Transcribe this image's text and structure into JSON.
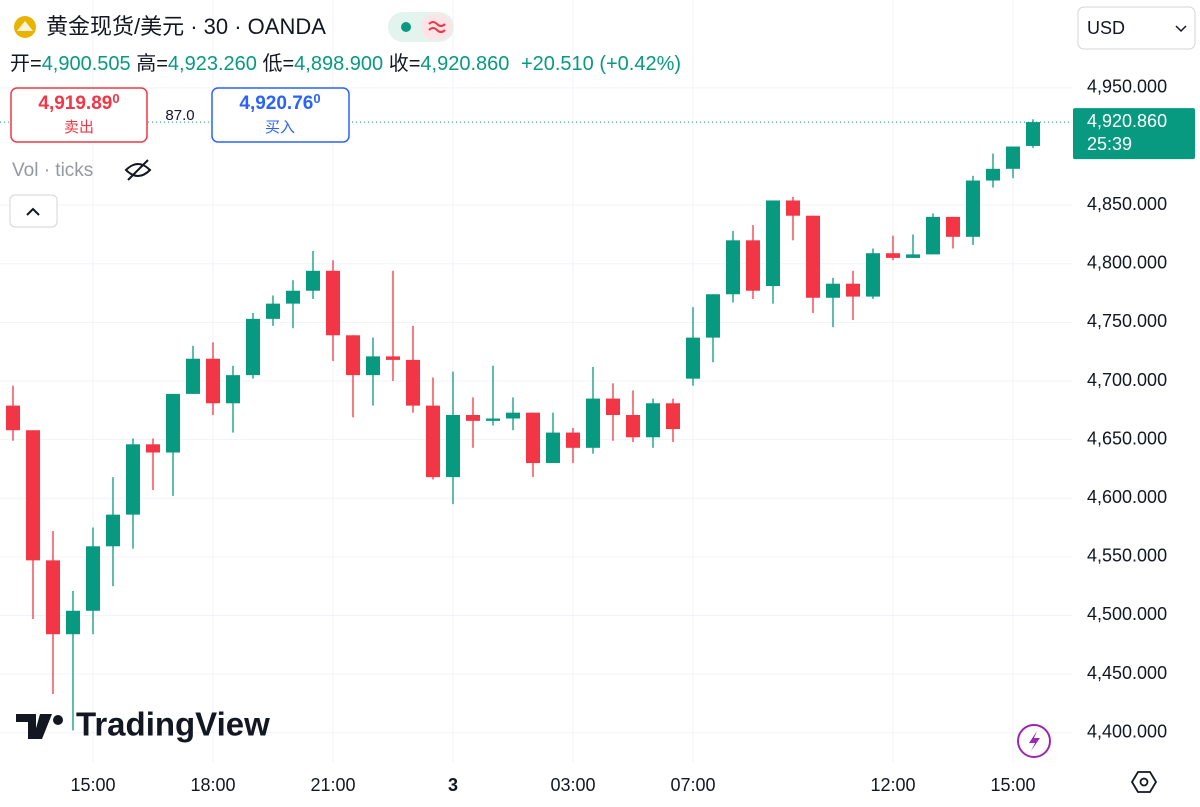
{
  "chart_data": {
    "type": "candlestick",
    "title": "黄金现货/美元 · 30 · OANDA",
    "currency": "USD",
    "legend": {
      "open_label": "开=",
      "open": "4,900.505",
      "high_label": "高=",
      "high": "4,923.260",
      "low_label": "低=",
      "low": "4,898.900",
      "close_label": "收=",
      "close": "4,920.860",
      "change": "+20.510 (+0.42%)"
    },
    "sell_price": "4,919.89",
    "sell_price_sup": "0",
    "sell_label": "卖出",
    "spread": "87.0",
    "buy_price": "4,920.76",
    "buy_price_sup": "0",
    "buy_label": "买入",
    "indicator": "Vol · ticks",
    "watermark": "TradingView",
    "last_price_label": "4,920.860",
    "countdown": "25:39",
    "up_color": "#089981",
    "down_color": "#f23645",
    "grid": true,
    "categories": [
      null,
      null,
      null,
      null,
      "15:00",
      null,
      null,
      null,
      null,
      null,
      "18:00",
      null,
      null,
      null,
      null,
      null,
      "21:00",
      null,
      null,
      null,
      null,
      null,
      "3",
      null,
      null,
      null,
      null,
      null,
      "03:00",
      null,
      null,
      null,
      null,
      null,
      "07:00",
      null,
      null,
      null,
      null,
      null,
      null,
      null,
      null,
      null,
      "12:00",
      null,
      null,
      null,
      null,
      null,
      "15:00",
      null
    ],
    "open": [
      4679,
      4658,
      4547,
      4484,
      4504,
      4559,
      4586,
      4646,
      4639,
      4689,
      4719,
      4681,
      4705,
      4753,
      4766,
      4777,
      4794,
      4739,
      4705,
      4721,
      4718,
      4679,
      4618,
      4671,
      4666,
      4668,
      4673,
      4630,
      4656,
      4643,
      4685,
      4671,
      4652,
      4681,
      4702,
      4737,
      4774,
      4820,
      4781,
      4854,
      4841,
      4771,
      4783,
      4772,
      4809,
      4805,
      4808,
      4840,
      4823,
      4871,
      4881,
      4900.505
    ],
    "high": [
      4696,
      4658,
      4572,
      4521,
      4575,
      4618,
      4651,
      4651,
      4689,
      4730,
      4733,
      4713,
      4758,
      4773,
      4786,
      4811,
      4803,
      4739,
      4737,
      4794,
      4747,
      4703,
      4708,
      4686,
      4713,
      4686,
      4673,
      4673,
      4660,
      4712,
      4698,
      4692,
      4685,
      4685,
      4763,
      4774,
      4828,
      4833,
      4854,
      4857,
      4841,
      4788,
      4794,
      4813,
      4824,
      4825,
      4843,
      4840,
      4875,
      4894,
      4900,
      4923.26
    ],
    "low": [
      4649,
      4497,
      4433,
      4402,
      4484,
      4525,
      4557,
      4607,
      4602,
      4689,
      4671,
      4656,
      4702,
      4747,
      4745,
      4770,
      4717,
      4669,
      4679,
      4700,
      4673,
      4616,
      4595,
      4643,
      4662,
      4658,
      4618,
      4630,
      4630,
      4638,
      4649,
      4648,
      4643,
      4648,
      4696,
      4716,
      4767,
      4770,
      4766,
      4820,
      4758,
      4746,
      4752,
      4770,
      4803,
      4805,
      4808,
      4813,
      4816,
      4865,
      4873,
      4898.9
    ],
    "close": [
      4658,
      4547,
      4484,
      4504,
      4559,
      4586,
      4646,
      4639,
      4689,
      4719,
      4681,
      4705,
      4753,
      4766,
      4777,
      4794,
      4739,
      4705,
      4721,
      4718,
      4679,
      4618,
      4671,
      4666,
      4668,
      4673,
      4630,
      4656,
      4643,
      4685,
      4671,
      4652,
      4681,
      4659,
      4737,
      4774,
      4820,
      4777,
      4854,
      4841,
      4771,
      4783,
      4772,
      4809,
      4805,
      4808,
      4840,
      4823,
      4871,
      4881,
      4900,
      4920.86
    ],
    "ylim": [
      4375,
      5025
    ],
    "yticks": [
      {
        "value": 4400,
        "label": "4,400.000"
      },
      {
        "value": 4450,
        "label": "4,450.000"
      },
      {
        "value": 4500,
        "label": "4,500.000"
      },
      {
        "value": 4550,
        "label": "4,550.000"
      },
      {
        "value": 4600,
        "label": "4,600.000"
      },
      {
        "value": 4650,
        "label": "4,650.000"
      },
      {
        "value": 4700,
        "label": "4,700.000"
      },
      {
        "value": 4750,
        "label": "4,750.000"
      },
      {
        "value": 4800,
        "label": "4,800.000"
      },
      {
        "value": 4850,
        "label": "4,850.000"
      },
      {
        "value": 4950,
        "label": "4,950.000"
      }
    ]
  }
}
